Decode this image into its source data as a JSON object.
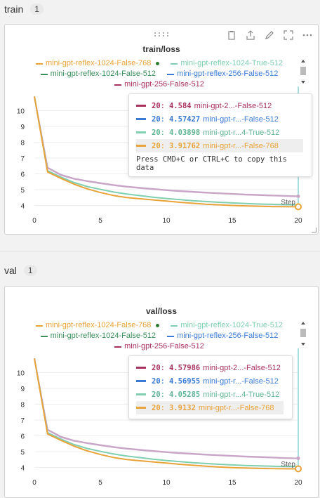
{
  "sections": [
    {
      "title": "train",
      "count": "1"
    },
    {
      "title": "val",
      "count": "1"
    }
  ],
  "colors": {
    "r1024_768": "#e8a33a",
    "r1024_true_512": "#7fcfb0",
    "r1024_512": "#3a8f5a",
    "r256_512": "#3a7bd5",
    "g256_512": "#a8325e",
    "ghost": "#c9a6c7"
  },
  "legend": [
    {
      "label": "mini-gpt-reflex-1024-False-768",
      "color": "#e8a33a",
      "active": true
    },
    {
      "label": "mini-gpt-reflex-1024-True-512",
      "color": "#7fcfb0",
      "active": false
    },
    {
      "label": "mini-gpt-reflex-1024-False-512",
      "color": "#3a8f5a",
      "active": false
    },
    {
      "label": "mini-gpt-reflex-256-False-512",
      "color": "#3a7bd5",
      "active": false
    },
    {
      "label": "mini-gpt-256-False-512",
      "color": "#a8325e",
      "active": false
    }
  ],
  "step_label": "Step",
  "copy_hint": "Press CMD+C or CTRL+C to copy this data",
  "chart_data": [
    {
      "type": "line",
      "title": "train/loss",
      "xlabel": "Step",
      "ylabel": "",
      "xlim": [
        0,
        20
      ],
      "ylim": [
        3.8,
        11
      ],
      "xticks": [
        "0",
        "5",
        "10",
        "15",
        "20"
      ],
      "yticks": [
        "4",
        "5",
        "6",
        "7",
        "8",
        "9",
        "10"
      ],
      "x": [
        0,
        1,
        2,
        3,
        4,
        5,
        6,
        7,
        8,
        9,
        10,
        11,
        12,
        13,
        14,
        15,
        16,
        17,
        18,
        19,
        20
      ],
      "series": [
        {
          "name": "mini-gpt-256-False-512",
          "color": "#c9a6c7",
          "values": [
            10.9,
            6.4,
            5.95,
            5.7,
            5.55,
            5.42,
            5.3,
            5.2,
            5.12,
            5.05,
            4.98,
            4.92,
            4.87,
            4.82,
            4.78,
            4.74,
            4.7,
            4.67,
            4.64,
            4.61,
            4.584
          ]
        },
        {
          "name": "mini-gpt-reflex-256-False-512",
          "color": "#c9a6c7",
          "values": [
            10.9,
            6.38,
            5.92,
            5.68,
            5.53,
            5.4,
            5.28,
            5.18,
            5.1,
            5.03,
            4.96,
            4.9,
            4.85,
            4.8,
            4.76,
            4.72,
            4.68,
            4.65,
            4.62,
            4.6,
            4.57427
          ]
        },
        {
          "name": "mini-gpt-reflex-1024-True-512",
          "color": "#7fcfb0",
          "values": [
            10.9,
            6.2,
            5.8,
            5.45,
            5.2,
            5.02,
            4.85,
            4.72,
            4.62,
            4.52,
            4.44,
            4.37,
            4.3,
            4.25,
            4.2,
            4.16,
            4.12,
            4.09,
            4.07,
            4.05,
            4.03898
          ]
        },
        {
          "name": "mini-gpt-reflex-1024-False-768",
          "color": "#e8a33a",
          "values": [
            10.9,
            6.12,
            5.72,
            5.35,
            5.05,
            4.82,
            4.63,
            4.5,
            4.42,
            4.35,
            4.28,
            4.2,
            4.14,
            4.08,
            4.04,
            4.0,
            3.97,
            3.95,
            3.93,
            3.92,
            3.91762
          ]
        }
      ],
      "tooltip": [
        {
          "step": "20",
          "value": "4.584",
          "name": "mini-gpt-2...-False-512",
          "color": "#a8325e"
        },
        {
          "step": "20",
          "value": "4.57427",
          "name": "mini-gpt-r...-False-512",
          "color": "#3a7bd5"
        },
        {
          "step": "20",
          "value": "4.03898",
          "name": "mini-gpt-r...4-True-512",
          "color": "#7fcfb0"
        },
        {
          "step": "20",
          "value": "3.91762",
          "name": "mini-gpt-r...-False-768",
          "color": "#e8a33a"
        }
      ]
    },
    {
      "type": "line",
      "title": "val/loss",
      "xlabel": "Step",
      "ylabel": "",
      "xlim": [
        0,
        20
      ],
      "ylim": [
        3.8,
        11
      ],
      "xticks": [
        "0",
        "5",
        "10",
        "15",
        "20"
      ],
      "yticks": [
        "4",
        "5",
        "6",
        "7",
        "8",
        "9",
        "10"
      ],
      "x": [
        0,
        1,
        2,
        3,
        4,
        5,
        6,
        7,
        8,
        9,
        10,
        11,
        12,
        13,
        14,
        15,
        16,
        17,
        18,
        19,
        20
      ],
      "series": [
        {
          "name": "mini-gpt-256-False-512",
          "color": "#c9a6c7",
          "values": [
            10.9,
            6.4,
            5.95,
            5.7,
            5.55,
            5.42,
            5.3,
            5.2,
            5.12,
            5.05,
            4.98,
            4.92,
            4.87,
            4.82,
            4.78,
            4.74,
            4.7,
            4.67,
            4.64,
            4.6,
            4.57986
          ]
        },
        {
          "name": "mini-gpt-reflex-256-False-512",
          "color": "#c9a6c7",
          "values": [
            10.9,
            6.38,
            5.92,
            5.68,
            5.53,
            5.4,
            5.28,
            5.18,
            5.1,
            5.03,
            4.96,
            4.9,
            4.85,
            4.8,
            4.76,
            4.72,
            4.68,
            4.65,
            4.62,
            4.59,
            4.56955
          ]
        },
        {
          "name": "mini-gpt-reflex-1024-True-512",
          "color": "#7fcfb0",
          "values": [
            10.9,
            6.2,
            5.8,
            5.45,
            5.2,
            5.02,
            4.85,
            4.72,
            4.62,
            4.52,
            4.44,
            4.37,
            4.3,
            4.25,
            4.2,
            4.16,
            4.12,
            4.1,
            4.08,
            4.06,
            4.05285
          ]
        },
        {
          "name": "mini-gpt-reflex-1024-False-768",
          "color": "#e8a33a",
          "values": [
            10.9,
            6.12,
            5.72,
            5.35,
            5.05,
            4.82,
            4.63,
            4.5,
            4.42,
            4.35,
            4.28,
            4.2,
            4.14,
            4.08,
            4.03,
            3.99,
            3.96,
            3.94,
            3.925,
            3.918,
            3.9132
          ]
        }
      ],
      "tooltip": [
        {
          "step": "20",
          "value": "4.57986",
          "name": "mini-gpt-2...-False-512",
          "color": "#a8325e"
        },
        {
          "step": "20",
          "value": "4.56955",
          "name": "mini-gpt-r...-False-512",
          "color": "#3a7bd5"
        },
        {
          "step": "20",
          "value": "4.05285",
          "name": "mini-gpt-r...4-True-512",
          "color": "#7fcfb0"
        },
        {
          "step": "20",
          "value": "3.9132",
          "name": "mini-gpt-r...-False-768",
          "color": "#e8a33a"
        }
      ]
    }
  ]
}
